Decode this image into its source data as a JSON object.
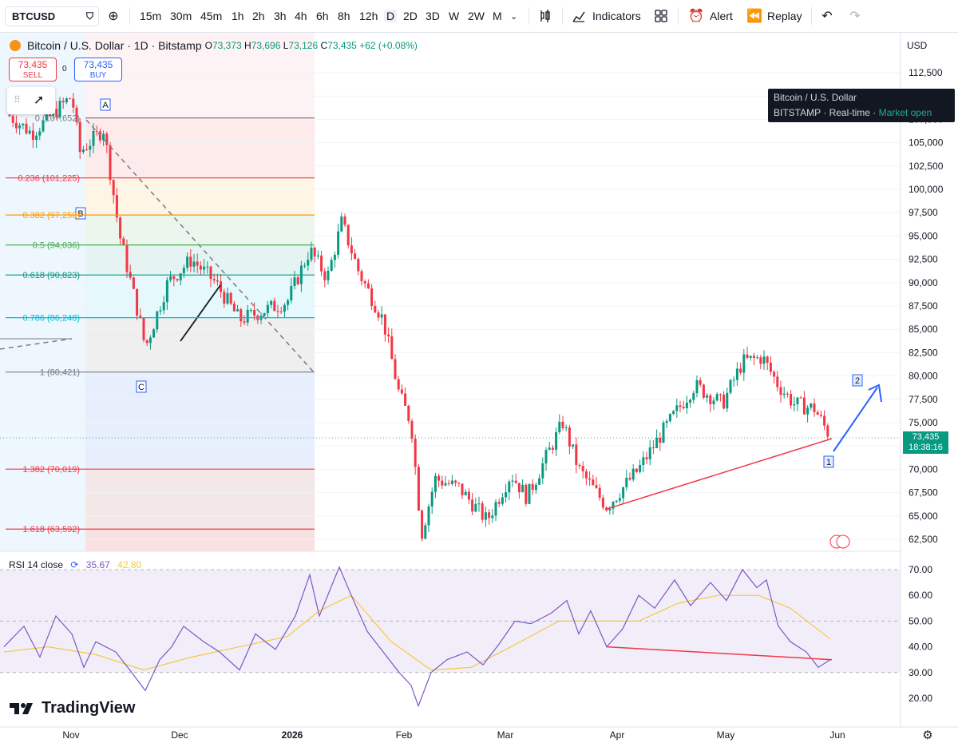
{
  "toolbar": {
    "symbol": "BTCUSD",
    "intervals": [
      "15m",
      "30m",
      "45m",
      "1h",
      "2h",
      "3h",
      "4h",
      "6h",
      "8h",
      "12h",
      "D",
      "2D",
      "3D",
      "W",
      "2W",
      "M"
    ],
    "active_interval": "D",
    "indicators_label": "Indicators",
    "alert_label": "Alert",
    "replay_label": "Replay"
  },
  "legend": {
    "title": "Bitcoin / U.S. Dollar · 1D · Bitstamp",
    "o_label": "O",
    "o": "73,373",
    "h_label": "H",
    "h": "73,696",
    "l_label": "L",
    "l": "73,126",
    "c_label": "C",
    "c": "73,435",
    "change": "+62 (+0.08%)"
  },
  "sell": {
    "price": "73,435",
    "label": "SELL"
  },
  "buy": {
    "price": "73,435",
    "label": "BUY"
  },
  "spread": "0",
  "tooltip": {
    "name": "Bitcoin / U.S. Dollar",
    "exchange": "BITSTAMP",
    "feed": "Real-time",
    "status": "Market open"
  },
  "currency": "USD",
  "last_price": {
    "price": "73,435",
    "countdown": "18:38:16"
  },
  "price_axis": [
    "112,500",
    "107,500",
    "105,000",
    "102,500",
    "100,000",
    "97,500",
    "95,000",
    "92,500",
    "90,000",
    "87,500",
    "85,000",
    "82,500",
    "80,000",
    "77,500",
    "75,000",
    "72,500",
    "70,000",
    "67,500",
    "65,000",
    "62,500"
  ],
  "rsi_axis": [
    "70.00",
    "60.00",
    "50.00",
    "40.00",
    "30.00",
    "20.00"
  ],
  "time_axis": [
    "Nov",
    "Dec",
    "2026",
    "Feb",
    "Mar",
    "Apr",
    "May",
    "Jun"
  ],
  "fib_levels": [
    {
      "label": "0 (107,652)",
      "price": 107652,
      "color": "#787b86"
    },
    {
      "label": "0.236 (101,225)",
      "price": 101225,
      "color": "#f23645"
    },
    {
      "label": "0.382 (97,250)",
      "price": 97250,
      "color": "#ff9800"
    },
    {
      "label": "0.5 (94,036)",
      "price": 94036,
      "color": "#4caf50"
    },
    {
      "label": "0.618 (90,823)",
      "price": 90823,
      "color": "#089981"
    },
    {
      "label": "0.786 (86,248)",
      "price": 86248,
      "color": "#00bcd4"
    },
    {
      "label": "1 (80,421)",
      "price": 80421,
      "color": "#787b86"
    },
    {
      "label": "1.382 (70,019)",
      "price": 70019,
      "color": "#f23645"
    },
    {
      "label": "1.618 (63,592)",
      "price": 63592,
      "color": "#f23645"
    }
  ],
  "wave_labels": [
    "A",
    "B",
    "C",
    "1",
    "2"
  ],
  "rsi": {
    "title": "RSI 14 close",
    "value": "35.67",
    "ma": "42.80"
  },
  "brand": "TradingView",
  "colors": {
    "up": "#089981",
    "down": "#f23645",
    "rsi": "#7e57c2",
    "rsi_ma": "#f5c842",
    "trendline": "#f23645",
    "projection": "#2962ff"
  }
}
